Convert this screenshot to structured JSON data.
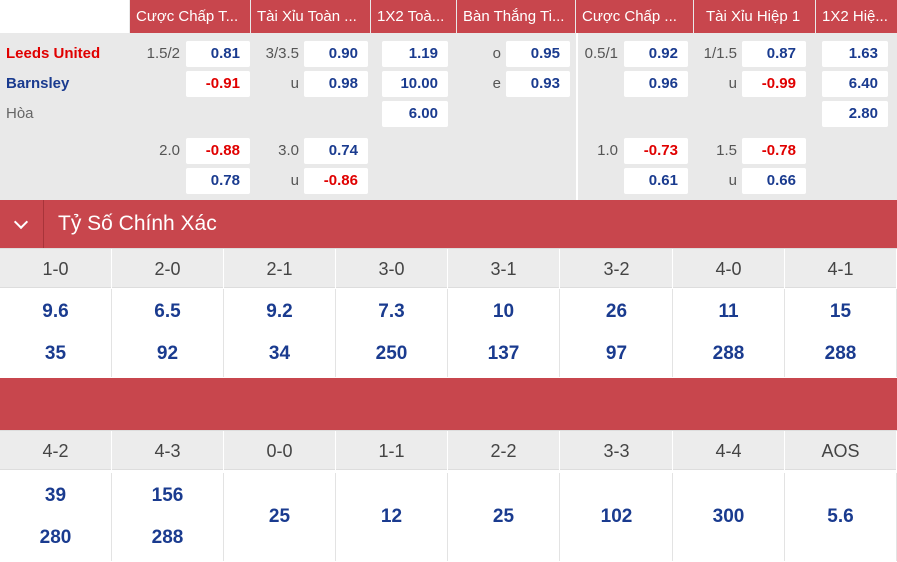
{
  "headers": [
    "Cược Chấp T...",
    "Tài Xỉu Toàn ...",
    "1X2 Toà...",
    "Bàn Thắng Ti...",
    "Cược Chấp ...",
    "Tài Xỉu Hiệp 1",
    "1X2 Hiệ..."
  ],
  "teams": {
    "home": "Leeds United",
    "away": "Barnsley",
    "draw": "Hòa"
  },
  "main": {
    "row1": {
      "ah_line": "1.5/2",
      "ah_home": "0.81",
      "ou_line": "3/3.5",
      "ou_over": "0.90",
      "x12_home": "1.19",
      "goal_o_label": "o",
      "goal_o": "0.95",
      "h1_ah_line": "0.5/1",
      "h1_ah_home": "0.92",
      "h1_ou_line": "1/1.5",
      "h1_ou_over": "0.87",
      "h1_x12_home": "1.63"
    },
    "row2": {
      "ah_away": "-0.91",
      "ou_u_label": "u",
      "ou_under": "0.98",
      "x12_away": "10.00",
      "goal_e_label": "e",
      "goal_e": "0.93",
      "h1_ah_away": "0.96",
      "h1_ou_u_label": "u",
      "h1_ou_under": "-0.99",
      "h1_x12_away": "6.40"
    },
    "row3": {
      "x12_draw": "6.00",
      "h1_x12_draw": "2.80"
    }
  },
  "alt": {
    "row1": {
      "ah_line": "2.0",
      "ah_home": "-0.88",
      "ou_line": "3.0",
      "ou_over": "0.74",
      "h1_ah_line": "1.0",
      "h1_ah_home": "-0.73",
      "h1_ou_line": "1.5",
      "h1_ou_over": "-0.78"
    },
    "row2": {
      "ah_away": "0.78",
      "ou_u_label": "u",
      "ou_under": "-0.86",
      "h1_ah_away": "0.61",
      "h1_ou_u_label": "u",
      "h1_ou_under": "0.66"
    }
  },
  "correct_score": {
    "title": "Tỷ Số Chính Xác",
    "group1": {
      "scores": [
        "1-0",
        "2-0",
        "2-1",
        "3-0",
        "3-1",
        "3-2",
        "4-0",
        "4-1"
      ],
      "home": [
        "9.6",
        "6.5",
        "9.2",
        "7.3",
        "10",
        "26",
        "11",
        "15"
      ],
      "away": [
        "35",
        "92",
        "34",
        "250",
        "137",
        "97",
        "288",
        "288"
      ]
    },
    "group2": {
      "scores": [
        "4-2",
        "4-3",
        "0-0",
        "1-1",
        "2-2",
        "3-3",
        "4-4",
        "AOS"
      ],
      "home": [
        "39",
        "156"
      ],
      "away": [
        "280",
        "288"
      ],
      "single": [
        "25",
        "12",
        "25",
        "102",
        "300",
        "5.6"
      ]
    }
  }
}
